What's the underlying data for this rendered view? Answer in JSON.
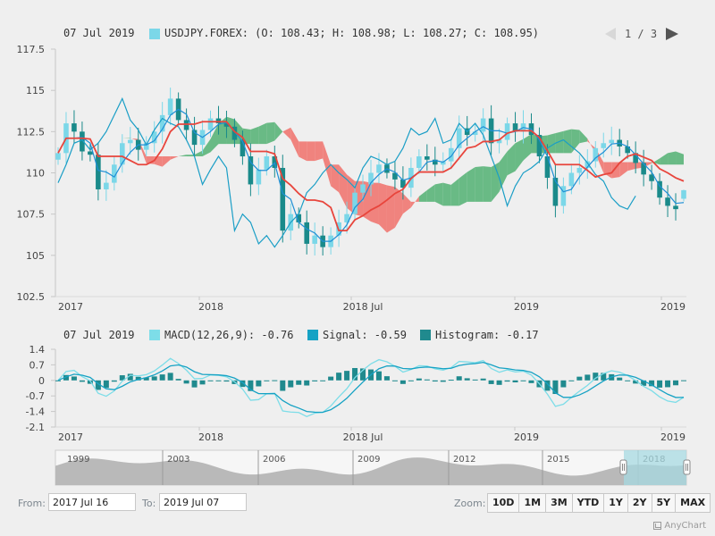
{
  "colors": {
    "background": "#efefef",
    "axis": "#c7c7c7",
    "candle_up": "#7bd7e8",
    "candle_down": "#1a8a8a",
    "tenkan": "#1e8fd6",
    "kijun": "#e8453c",
    "chikou": "#1a9ec6",
    "cloud_bull": "#4caf6e",
    "cloud_bear": "#f06b65",
    "macd": "#7ddde8",
    "signal": "#16a2c4",
    "histogram": "#208a8e"
  },
  "legend_price": {
    "date": "07 Jul 2019",
    "series": "USDJPY.FOREX: (O: 108.43; H: 108.98; L: 108.27; C: 108.95)"
  },
  "legend_macd": {
    "date": "07 Jul 2019",
    "macd": "MACD(12,26,9): -0.76",
    "signal": "Signal: -0.59",
    "histogram": "Histogram: -0.17"
  },
  "paginator": {
    "text": "1 / 3"
  },
  "scroller": {
    "labels": [
      "1999",
      "2003",
      "2006",
      "2009",
      "2012",
      "2015",
      "2018"
    ]
  },
  "controls": {
    "from_label": "From:",
    "from_value": "2017 Jul 16",
    "to_label": "To:",
    "to_value": "2019 Jul 07",
    "zoom_label": "Zoom:",
    "zoom_buttons": [
      "10D",
      "1M",
      "3M",
      "YTD",
      "1Y",
      "2Y",
      "5Y",
      "MAX"
    ]
  },
  "credits": "AnyChart",
  "chart_data": [
    {
      "type": "candlestick",
      "series_name": "USDJPY.FOREX",
      "x_tick_labels": [
        "2017",
        "2018",
        "2018 Jul",
        "2019",
        "2019"
      ],
      "y_tick_labels": [
        "117.5",
        "115",
        "112.5",
        "110",
        "107.5",
        "105",
        "102.5"
      ],
      "ylim": [
        102.5,
        117.5
      ],
      "grid": false,
      "ohlc_close_path": [
        111.2,
        113.0,
        112.5,
        111.3,
        111.1,
        109.0,
        109.4,
        110.5,
        111.8,
        112.0,
        111.4,
        111.8,
        112.5,
        113.5,
        114.5,
        113.2,
        112.6,
        111.7,
        112.6,
        113.3,
        113.0,
        112.8,
        112.0,
        111.0,
        109.3,
        110.2,
        111.0,
        110.3,
        106.5,
        107.5,
        107.0,
        105.7,
        106.2,
        105.5,
        106.2,
        107.0,
        107.5,
        108.8,
        109.3,
        110.0,
        110.5,
        110.0,
        109.6,
        109.1,
        110.3,
        111.0,
        110.8,
        110.5,
        110.7,
        111.5,
        112.7,
        112.3,
        112.5,
        113.3,
        111.8,
        112.0,
        113.0,
        112.5,
        113.0,
        112.3,
        111.0,
        109.7,
        108.0,
        109.2,
        110.0,
        110.3,
        110.7,
        111.5,
        111.8,
        112.0,
        111.6,
        111.2,
        110.6,
        109.9,
        109.5,
        108.5,
        108.0,
        107.8,
        108.6
      ],
      "last_candle": {
        "open": 108.43,
        "high": 108.98,
        "low": 108.27,
        "close": 108.95
      }
    },
    {
      "type": "line",
      "title": "MACD(12,26,9)",
      "x_tick_labels": [
        "2017",
        "2018",
        "2018 Jul",
        "2019",
        "2019"
      ],
      "y_tick_labels": [
        "1.4",
        "0.7",
        "0",
        "-0.7",
        "-1.4",
        "-2.1"
      ],
      "ylim": [
        -2.1,
        1.4
      ],
      "series": [
        {
          "name": "MACD(12,26,9)",
          "last": -0.76
        },
        {
          "name": "Signal",
          "last": -0.59
        },
        {
          "name": "Histogram",
          "last": -0.17
        }
      ]
    }
  ]
}
